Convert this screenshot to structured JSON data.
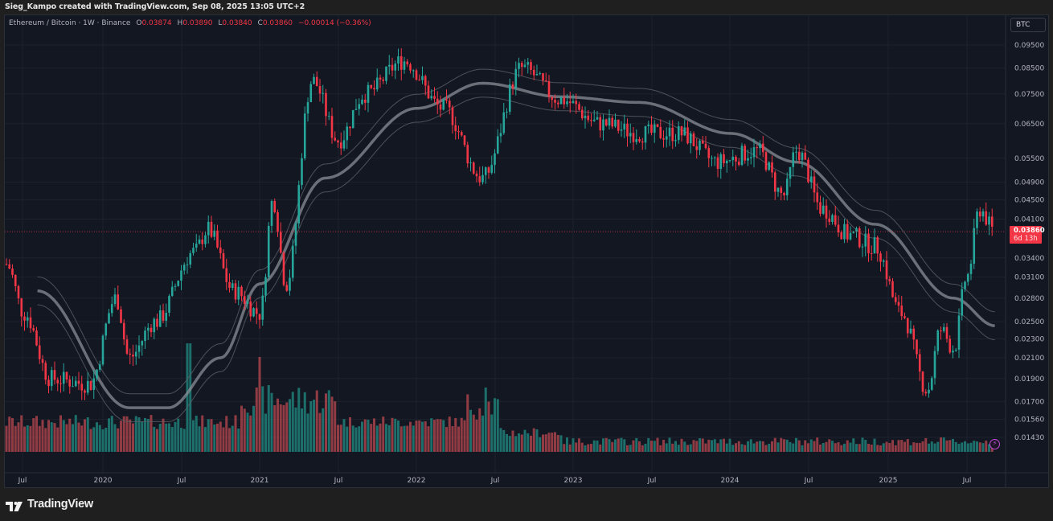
{
  "header": {
    "credit": "Sieg_Kampo created with TradingView.com, Sep 08, 2025 13:05 UTC+2"
  },
  "legend": {
    "symbol": "Ethereum / Bitcoin · 1W · Binance",
    "open_label": "O",
    "open": "0.03874",
    "high_label": "H",
    "high": "0.03890",
    "low_label": "L",
    "low": "0.03840",
    "close_label": "C",
    "close": "0.03860",
    "change": "−0.00014 (−0.36%)"
  },
  "currency_button": "BTC",
  "last_price": {
    "value": "0.03860",
    "countdown": "6d 13h"
  },
  "brand": {
    "name": "TradingView"
  },
  "colors": {
    "background": "#131722",
    "up": "#26a69a",
    "down": "#f23645",
    "volume_up": "#1f7f77",
    "volume_down": "#a8434a",
    "ma": "#8a8d96",
    "grid": "#1e222d",
    "text": "#b2b5be"
  },
  "chart_data": {
    "type": "candlestick",
    "title": "Ethereum / Bitcoin · 1W · Binance",
    "symbol": "ETHBTC",
    "interval": "1W",
    "exchange": "Binance",
    "scale": "log",
    "ylabel": "BTC",
    "last": {
      "open": 0.03874,
      "high": 0.0389,
      "low": 0.0384,
      "close": 0.0386,
      "change": -0.00014,
      "change_pct": -0.36
    },
    "y_ticks": [
      0.095,
      0.085,
      0.075,
      0.065,
      0.055,
      0.049,
      0.045,
      0.041,
      0.034,
      0.031,
      0.028,
      0.025,
      0.023,
      0.021,
      0.019,
      0.017,
      0.0156,
      0.0143
    ],
    "y_tick_labels": [
      "0.09500",
      "0.08500",
      "0.07500",
      "0.06500",
      "0.05500",
      "0.04900",
      "0.04500",
      "0.04100",
      "0.03400",
      "0.03100",
      "0.02800",
      "0.02500",
      "0.02300",
      "0.02100",
      "0.01900",
      "0.01700",
      "0.01560",
      "0.01430"
    ],
    "x_tick_labels": [
      "Jul",
      "2020",
      "Jul",
      "2021",
      "Jul",
      "2022",
      "Jul",
      "2023",
      "Jul",
      "2024",
      "Jul",
      "2025",
      "Jul"
    ],
    "ylim": [
      0.0135,
      0.1
    ],
    "legend_position": "top-left",
    "grid": true,
    "overlays": [
      "Moving average (~50W) with upper/lower envelope bands",
      "Volume histogram"
    ],
    "path_keypoints": [
      {
        "date": "2019-05",
        "price": 0.033
      },
      {
        "date": "2019-07",
        "price": 0.026
      },
      {
        "date": "2019-09",
        "price": 0.019
      },
      {
        "date": "2019-12",
        "price": 0.0185
      },
      {
        "date": "2020-02",
        "price": 0.028
      },
      {
        "date": "2020-03",
        "price": 0.021
      },
      {
        "date": "2020-05",
        "price": 0.025
      },
      {
        "date": "2020-08",
        "price": 0.035
      },
      {
        "date": "2020-09",
        "price": 0.039
      },
      {
        "date": "2020-11",
        "price": 0.029
      },
      {
        "date": "2021-01",
        "price": 0.026
      },
      {
        "date": "2021-02",
        "price": 0.045
      },
      {
        "date": "2021-03",
        "price": 0.03
      },
      {
        "date": "2021-05",
        "price": 0.08
      },
      {
        "date": "2021-07",
        "price": 0.06
      },
      {
        "date": "2021-09",
        "price": 0.075
      },
      {
        "date": "2021-12",
        "price": 0.088
      },
      {
        "date": "2022-03",
        "price": 0.07
      },
      {
        "date": "2022-06",
        "price": 0.05
      },
      {
        "date": "2022-09",
        "price": 0.085
      },
      {
        "date": "2022-12",
        "price": 0.073
      },
      {
        "date": "2023-03",
        "price": 0.065
      },
      {
        "date": "2023-06",
        "price": 0.062
      },
      {
        "date": "2023-09",
        "price": 0.062
      },
      {
        "date": "2023-12",
        "price": 0.054
      },
      {
        "date": "2024-03",
        "price": 0.057
      },
      {
        "date": "2024-05",
        "price": 0.046
      },
      {
        "date": "2024-06",
        "price": 0.057
      },
      {
        "date": "2024-08",
        "price": 0.043
      },
      {
        "date": "2024-10",
        "price": 0.038
      },
      {
        "date": "2024-12",
        "price": 0.036
      },
      {
        "date": "2025-02",
        "price": 0.026
      },
      {
        "date": "2025-04",
        "price": 0.018
      },
      {
        "date": "2025-05",
        "price": 0.024
      },
      {
        "date": "2025-06",
        "price": 0.022
      },
      {
        "date": "2025-07",
        "price": 0.031
      },
      {
        "date": "2025-08",
        "price": 0.043
      },
      {
        "date": "2025-09",
        "price": 0.0386
      }
    ],
    "moving_average_keypoints": [
      {
        "date": "2019-08",
        "price": 0.029
      },
      {
        "date": "2020-03",
        "price": 0.0165
      },
      {
        "date": "2020-06",
        "price": 0.0165
      },
      {
        "date": "2020-10",
        "price": 0.021
      },
      {
        "date": "2021-01",
        "price": 0.03
      },
      {
        "date": "2021-06",
        "price": 0.05
      },
      {
        "date": "2022-01",
        "price": 0.07
      },
      {
        "date": "2022-06",
        "price": 0.079
      },
      {
        "date": "2022-12",
        "price": 0.074
      },
      {
        "date": "2023-06",
        "price": 0.072
      },
      {
        "date": "2024-01",
        "price": 0.062
      },
      {
        "date": "2024-06",
        "price": 0.054
      },
      {
        "date": "2024-12",
        "price": 0.04
      },
      {
        "date": "2025-06",
        "price": 0.028
      },
      {
        "date": "2025-09",
        "price": 0.0245
      }
    ]
  }
}
